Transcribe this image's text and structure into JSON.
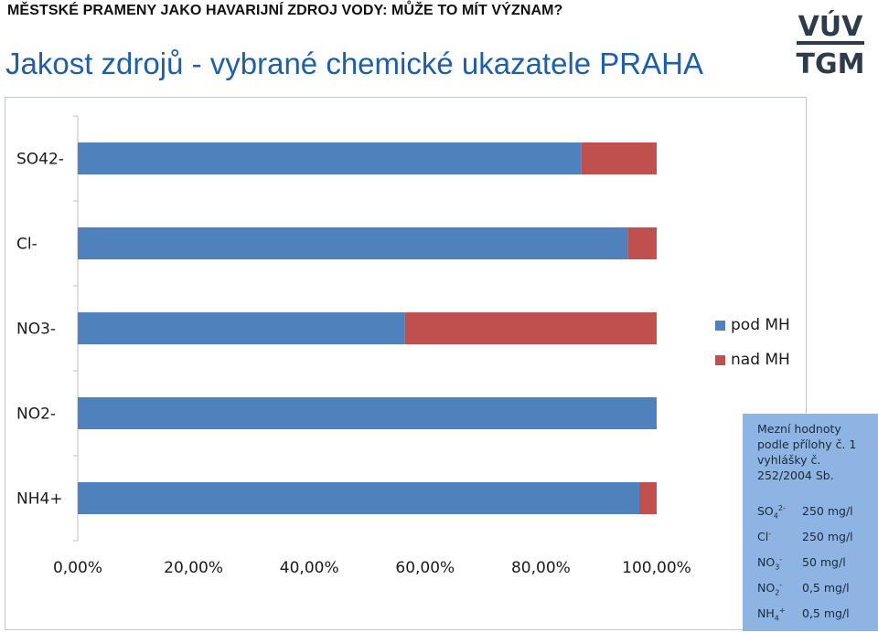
{
  "header": {
    "top_title": "MĚSTSKÉ PRAMENY JAKO HAVARIJNÍ ZDROJ VODY: MŮŽE TO MÍT VÝZNAM?",
    "main_title": "Jakost zdrojů - vybrané chemické ukazatele PRAHA"
  },
  "logo": {
    "line1": "VÚV",
    "line2": "TGM"
  },
  "colors": {
    "pod": "#4f81bd",
    "nad": "#c0504d",
    "title": "#1f5fa8",
    "info_box": "#8eb4e3"
  },
  "chart_data": {
    "type": "bar",
    "orientation": "horizontal",
    "stacked": true,
    "categories": [
      "SO42-",
      "Cl-",
      "NO3-",
      "NO2-",
      "NH4+"
    ],
    "series": [
      {
        "name": "pod MH",
        "values": [
          0.87,
          0.95,
          0.565,
          1.0,
          0.97
        ]
      },
      {
        "name": "nad MH",
        "values": [
          0.13,
          0.05,
          0.435,
          0.0,
          0.03
        ]
      }
    ],
    "x_ticks": [
      "0,00%",
      "20,00%",
      "40,00%",
      "60,00%",
      "80,00%",
      "100,00%"
    ],
    "xlim": [
      0,
      1
    ],
    "grid": false,
    "legend_position": "right"
  },
  "info_box": {
    "heading": "Mezní hodnoty podle přílohy č. 1 vyhlášky č. 252/2004 Sb.",
    "limits": [
      {
        "symbol": "SO",
        "sub": "4",
        "sup": "2-",
        "value": "250 mg/l"
      },
      {
        "symbol": "Cl",
        "sub": "",
        "sup": "-",
        "value": "250 mg/l"
      },
      {
        "symbol": "NO",
        "sub": "3",
        "sup": "-",
        "value": "50 mg/l"
      },
      {
        "symbol": "NO",
        "sub": "2",
        "sup": "-",
        "value": "0,5 mg/l"
      },
      {
        "symbol": "NH",
        "sub": "4",
        "sup": "+",
        "value": "0,5 mg/l"
      }
    ]
  }
}
